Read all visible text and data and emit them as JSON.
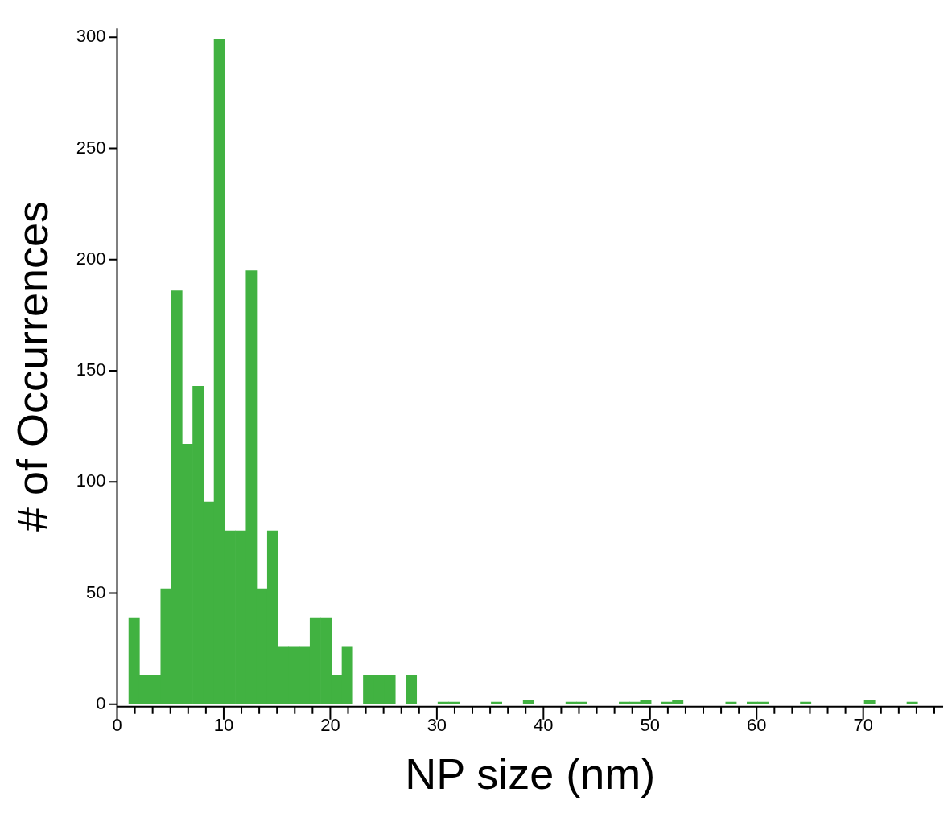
{
  "chart_data": {
    "type": "histogram",
    "xlabel": "NP size (nm)",
    "ylabel": "# of Occurrences",
    "color": "#41b241",
    "bins": [
      1.1,
      2.1,
      3.1,
      4.1,
      5.1,
      6.1,
      7.1,
      8.1,
      9.1,
      10.1,
      11.1,
      12.1,
      13.1,
      14.1,
      15.1,
      16.1,
      17.1,
      18.1,
      19.1,
      20.1,
      21.1,
      22.1,
      23.1,
      24.1,
      25.1,
      26.1,
      27.1,
      28.1,
      29.1,
      30.1,
      31.1,
      32.1,
      33.1,
      34.1,
      35.1,
      36.1,
      37.1,
      38.1,
      39.1,
      40.1,
      41.1,
      42.1,
      43.1,
      44.1,
      45.1,
      46.1,
      47.1,
      48.1,
      49.1,
      50.1,
      51.1,
      52.1,
      53.1,
      54.1,
      55.1,
      56.1,
      57.1,
      58.1,
      59.1,
      60.1,
      61.1,
      62.1,
      63.1,
      64.1,
      65.1,
      66.1,
      67.1,
      68.1,
      69.1,
      70.1,
      71.1,
      72.1,
      73.1,
      74.1,
      75.1,
      76.1,
      77.1
    ],
    "values": [
      39,
      13,
      13,
      52,
      186,
      117,
      143,
      91,
      299,
      78,
      78,
      195,
      52,
      78,
      26,
      26,
      26,
      39,
      39,
      13,
      26,
      0,
      13,
      13,
      13,
      0,
      13,
      0,
      0,
      1,
      1,
      0,
      0,
      0,
      1,
      0,
      0,
      2,
      0,
      0,
      0,
      1,
      1,
      0,
      0,
      0,
      1,
      1,
      2,
      0,
      1,
      2,
      0,
      0,
      0,
      0,
      1,
      0,
      1,
      1,
      0,
      0,
      0,
      1,
      0,
      0,
      0,
      0,
      0,
      2,
      0,
      0,
      0,
      1,
      0,
      0
    ],
    "xlim": [
      0,
      77.5
    ],
    "ylim": [
      0,
      304
    ],
    "xticks": [
      0,
      {
        "value": 1.667,
        "label": null
      },
      {
        "value": 3.333,
        "label": null
      },
      {
        "value": 5,
        "label": null
      },
      {
        "value": 6.667,
        "label": null
      },
      {
        "value": 8.333,
        "label": null
      },
      10,
      {
        "value": 11.667,
        "label": null
      },
      {
        "value": 13.333,
        "label": null
      },
      {
        "value": 15,
        "label": null
      },
      {
        "value": 16.667,
        "label": null
      },
      {
        "value": 18.333,
        "label": null
      },
      20,
      {
        "value": 21.667,
        "label": null
      },
      {
        "value": 23.333,
        "label": null
      },
      {
        "value": 25,
        "label": null
      },
      {
        "value": 26.667,
        "label": null
      },
      {
        "value": 28.333,
        "label": null
      },
      30,
      {
        "value": 31.667,
        "label": null
      },
      {
        "value": 33.333,
        "label": null
      },
      {
        "value": 35,
        "label": null
      },
      {
        "value": 36.667,
        "label": null
      },
      {
        "value": 38.333,
        "label": null
      },
      40,
      {
        "value": 41.667,
        "label": null
      },
      {
        "value": 43.333,
        "label": null
      },
      {
        "value": 45,
        "label": null
      },
      {
        "value": 46.667,
        "label": null
      },
      {
        "value": 48.333,
        "label": null
      },
      50,
      {
        "value": 51.667,
        "label": null
      },
      {
        "value": 53.333,
        "label": null
      },
      {
        "value": 55,
        "label": null
      },
      {
        "value": 56.667,
        "label": null
      },
      {
        "value": 58.333,
        "label": null
      },
      60,
      {
        "value": 61.667,
        "label": null
      },
      {
        "value": 63.333,
        "label": null
      },
      {
        "value": 65,
        "label": null
      },
      {
        "value": 66.667,
        "label": null
      },
      {
        "value": 68.333,
        "label": null
      },
      70,
      {
        "value": 71.667,
        "label": null
      },
      {
        "value": 73.333,
        "label": null
      },
      {
        "value": 75,
        "label": null
      },
      {
        "value": 76.667,
        "label": null
      }
    ],
    "yticks": [
      0,
      50,
      100,
      150,
      200,
      250,
      300
    ],
    "grid": false,
    "legend": false
  }
}
